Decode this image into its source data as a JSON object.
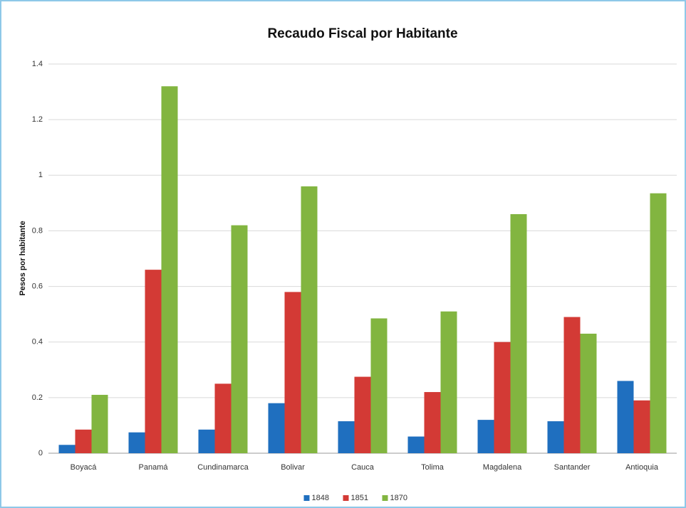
{
  "chart_data": {
    "type": "bar",
    "title": "Recaudo Fiscal por Habitante",
    "y_label": "Pesos por habitante",
    "categories": [
      "Boyacá",
      "Panamá",
      "Cundinamarca",
      "Bolivar",
      "Cauca",
      "Tolima",
      "Magdalena",
      "Santander",
      "Antioquia"
    ],
    "series": [
      {
        "name": "1848",
        "color": "#1f6fbf",
        "values": [
          0.03,
          0.075,
          0.085,
          0.18,
          0.115,
          0.06,
          0.12,
          0.115,
          0.26
        ]
      },
      {
        "name": "1851",
        "color": "#d33a35",
        "values": [
          0.085,
          0.66,
          0.25,
          0.58,
          0.275,
          0.22,
          0.4,
          0.49,
          0.19
        ]
      },
      {
        "name": "1870",
        "color": "#82b540",
        "values": [
          0.21,
          1.32,
          0.82,
          0.96,
          0.485,
          0.51,
          0.86,
          0.43,
          0.935
        ]
      }
    ],
    "ylim": [
      0,
      1.4
    ],
    "yticks": [
      0,
      0.2,
      0.4,
      0.6,
      0.8,
      1,
      1.2,
      1.4
    ],
    "grid": true,
    "legend": "bottom"
  }
}
